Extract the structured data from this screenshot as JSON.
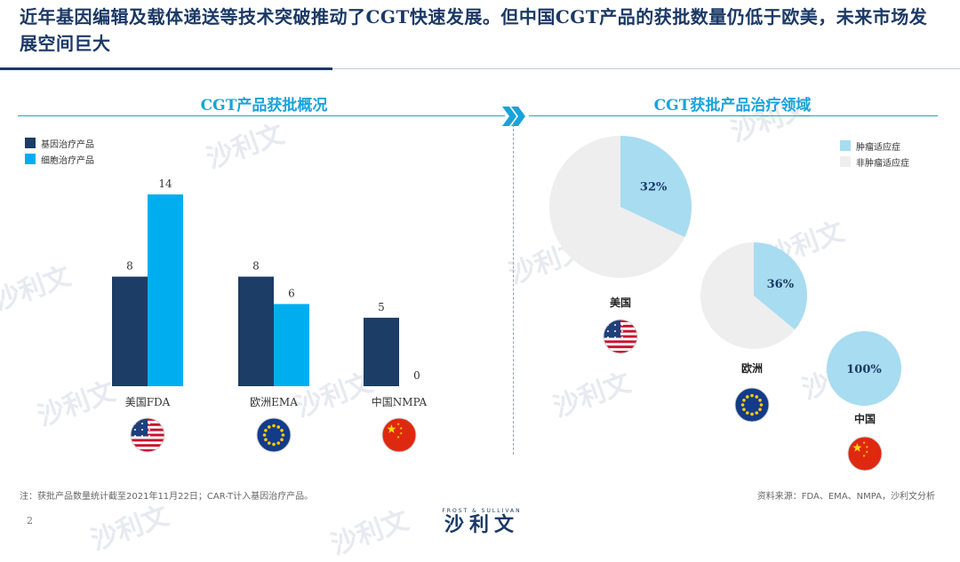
{
  "header": {
    "title": "近年基因编辑及载体递送等技术突破推动了CGT快速发展。但中国CGT产品的获批数量仍低于欧美，未来市场发展空间巨大"
  },
  "left_section": {
    "title": "CGT产品获批概况"
  },
  "right_section": {
    "title": "CGT获批产品治疗领域"
  },
  "icons": [
    "flag-us-icon",
    "flag-eu-icon",
    "flag-china-icon",
    "chevron-right-icon",
    "frost-sullivan-logo"
  ],
  "colors": {
    "gene": "#1b3d66",
    "cell": "#00aeef",
    "tumor": "#a8dcf0",
    "non_tumor": "#eeeeee",
    "title_accent": "#1aa3d9"
  },
  "chart_data": [
    {
      "type": "bar",
      "title": "CGT产品获批概况",
      "categories": [
        "美国FDA",
        "欧洲EMA",
        "中国NMPA"
      ],
      "series": [
        {
          "name": "基因治疗产品",
          "values": [
            8,
            8,
            5
          ]
        },
        {
          "name": "细胞治疗产品",
          "values": [
            14,
            6,
            0
          ]
        }
      ],
      "ylim": [
        0,
        14
      ],
      "grid": false,
      "legend": "top-left"
    },
    {
      "type": "pie",
      "title": "CGT获批产品治疗领域",
      "legend_labels": [
        "肿瘤适应症",
        "非肿瘤适应症"
      ],
      "legend": "top-right",
      "pies": [
        {
          "label": "美国",
          "tumor_pct": 32,
          "display": "32%"
        },
        {
          "label": "欧洲",
          "tumor_pct": 36,
          "display": "36%"
        },
        {
          "label": "中国",
          "tumor_pct": 100,
          "display": "100%"
        }
      ]
    }
  ],
  "footer": {
    "note": "注：获批产品数量统计截至2021年11月22日；CAR-T计入基因治疗产品。",
    "source": "资料来源：FDA、EMA、NMPA，沙利文分析",
    "page_number": "2",
    "logo_small": "FROST & SULLIVAN",
    "logo_big": "沙利文"
  },
  "watermark": {
    "text": "沙利文"
  }
}
